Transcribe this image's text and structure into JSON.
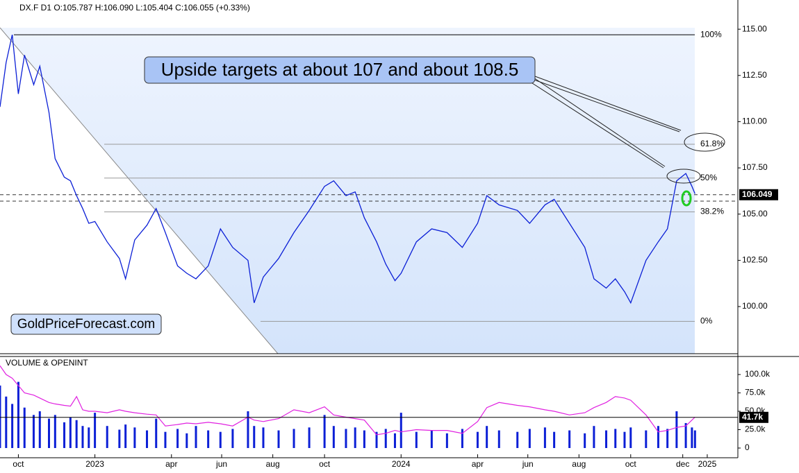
{
  "header": "DX.F  D1  O:105.787  H:106.090  L:105.404  C:106.055  (+0.33%)",
  "annotation": "Upside targets at about 107 and about 108.5",
  "watermark": "GoldPriceForecast.com",
  "chart_data": [
    {
      "type": "line",
      "color": "#0b1fd6",
      "x": [
        2022.69,
        2022.71,
        2022.73,
        2022.75,
        2022.77,
        2022.8,
        2022.82,
        2022.85,
        2022.87,
        2022.9,
        2022.92,
        2022.94,
        2022.96,
        2022.98,
        2023.0,
        2023.04,
        2023.08,
        2023.1,
        2023.13,
        2023.17,
        2023.2,
        2023.23,
        2023.27,
        2023.3,
        2023.33,
        2023.37,
        2023.41,
        2023.45,
        2023.5,
        2023.52,
        2023.55,
        2023.6,
        2023.65,
        2023.7,
        2023.75,
        2023.78,
        2023.82,
        2023.85,
        2023.88,
        2023.92,
        2023.95,
        2023.98,
        2024.0,
        2024.05,
        2024.1,
        2024.15,
        2024.2,
        2024.25,
        2024.28,
        2024.32,
        2024.38,
        2024.42,
        2024.47,
        2024.5,
        2024.55,
        2024.6,
        2024.63,
        2024.67,
        2024.7,
        2024.73,
        2024.75,
        2024.8,
        2024.84,
        2024.87,
        2024.9,
        2024.93,
        2024.95,
        2024.96
      ],
      "values": [
        110.8,
        113.2,
        114.7,
        111.5,
        113.6,
        112.0,
        113.0,
        110.5,
        108.0,
        107.0,
        106.8,
        106.0,
        105.3,
        104.5,
        104.6,
        103.5,
        102.6,
        101.5,
        103.6,
        104.4,
        105.3,
        104.0,
        102.2,
        101.8,
        101.5,
        102.2,
        104.2,
        103.2,
        102.5,
        100.2,
        101.6,
        102.6,
        104.0,
        105.2,
        106.5,
        106.8,
        106.0,
        106.2,
        104.8,
        103.5,
        102.3,
        101.4,
        101.8,
        103.5,
        104.2,
        104.0,
        103.2,
        104.5,
        106.0,
        105.5,
        105.2,
        104.5,
        105.5,
        105.8,
        104.5,
        103.2,
        101.5,
        101.0,
        101.5,
        100.8,
        100.2,
        102.5,
        103.5,
        104.2,
        106.8,
        107.2,
        106.5,
        106.1
      ],
      "xlim": [
        2022.69,
        2025.1
      ],
      "xticks": [
        {
          "value": 2022.75,
          "label": "oct"
        },
        {
          "value": 2023.0,
          "label": "2023"
        },
        {
          "value": 2023.25,
          "label": "apr"
        },
        {
          "value": 2023.414,
          "label": "jun"
        },
        {
          "value": 2023.581,
          "label": "aug"
        },
        {
          "value": 2023.75,
          "label": "oct"
        },
        {
          "value": 2024.0,
          "label": "2024"
        },
        {
          "value": 2024.25,
          "label": "apr"
        },
        {
          "value": 2024.414,
          "label": "jun"
        },
        {
          "value": 2024.581,
          "label": "aug"
        },
        {
          "value": 2024.75,
          "label": "oct"
        },
        {
          "value": 2024.92,
          "label": "dec"
        },
        {
          "value": 2025.0,
          "label": "2025"
        }
      ],
      "ylim": [
        97.45,
        116.58
      ],
      "yticks": [
        {
          "value": 100,
          "label": "100.00"
        },
        {
          "value": 102.5,
          "label": "102.50"
        },
        {
          "value": 105,
          "label": "105.00"
        },
        {
          "value": 107.5,
          "label": "107.50"
        },
        {
          "value": 110,
          "label": "110.00"
        },
        {
          "value": 112.5,
          "label": "112.50"
        },
        {
          "value": 115,
          "label": "115.00"
        }
      ],
      "fib_levels": [
        {
          "value": 114.7,
          "label": "100%"
        },
        {
          "value": 108.78,
          "label": "61.8%"
        },
        {
          "value": 106.95,
          "label": "50%"
        },
        {
          "value": 105.12,
          "label": "38.2%"
        },
        {
          "value": 99.2,
          "label": "0%"
        }
      ],
      "dashed_levels": [
        106.05,
        105.7
      ],
      "last_price": {
        "value": 106.049,
        "label": "106.049"
      }
    },
    {
      "type": "bar",
      "title": "VOLUME & OPENINT",
      "color": "#0b1fd6",
      "x": [
        2022.69,
        2022.71,
        2022.73,
        2022.75,
        2022.77,
        2022.8,
        2022.82,
        2022.85,
        2022.87,
        2022.9,
        2022.92,
        2022.94,
        2022.96,
        2022.98,
        2023.0,
        2023.04,
        2023.08,
        2023.1,
        2023.13,
        2023.17,
        2023.2,
        2023.23,
        2023.27,
        2023.3,
        2023.33,
        2023.37,
        2023.41,
        2023.45,
        2023.5,
        2023.52,
        2023.55,
        2023.6,
        2023.65,
        2023.7,
        2023.75,
        2023.78,
        2023.82,
        2023.85,
        2023.88,
        2023.92,
        2023.95,
        2023.98,
        2024.0,
        2024.05,
        2024.1,
        2024.15,
        2024.2,
        2024.25,
        2024.28,
        2024.32,
        2024.38,
        2024.42,
        2024.47,
        2024.5,
        2024.55,
        2024.6,
        2024.63,
        2024.67,
        2024.7,
        2024.73,
        2024.75,
        2024.8,
        2024.84,
        2024.87,
        2024.9,
        2024.93,
        2024.95,
        2024.96
      ],
      "values": [
        85000,
        70000,
        60000,
        90000,
        55000,
        45000,
        50000,
        40000,
        45000,
        35000,
        42000,
        38000,
        30000,
        28000,
        48000,
        30000,
        25000,
        32000,
        28000,
        24000,
        40000,
        22000,
        26000,
        20000,
        30000,
        24000,
        22000,
        26000,
        50000,
        30000,
        28000,
        24000,
        26000,
        28000,
        45000,
        30000,
        26000,
        28000,
        24000,
        22000,
        26000,
        20000,
        48000,
        22000,
        24000,
        20000,
        26000,
        22000,
        30000,
        24000,
        22000,
        26000,
        28000,
        22000,
        24000,
        20000,
        30000,
        24000,
        26000,
        22000,
        28000,
        24000,
        30000,
        26000,
        50000,
        34000,
        28000,
        24000
      ],
      "openint": {
        "color": "#e020e0",
        "values": [
          112000,
          100000,
          95000,
          85000,
          75000,
          72000,
          68000,
          62000,
          60000,
          58000,
          57000,
          70000,
          52000,
          50000,
          50000,
          48000,
          52000,
          50000,
          48000,
          46000,
          45000,
          30000,
          32000,
          34000,
          33000,
          35000,
          33000,
          30000,
          42000,
          38000,
          36000,
          40000,
          52000,
          48000,
          56000,
          45000,
          42000,
          40000,
          38000,
          18000,
          20000,
          24000,
          22000,
          25000,
          24000,
          24000,
          20000,
          36000,
          55000,
          62000,
          58000,
          56000,
          52000,
          50000,
          45000,
          48000,
          55000,
          62000,
          70000,
          68000,
          65000,
          45000,
          22000,
          24000,
          28000,
          30000,
          38000,
          42000
        ]
      },
      "xlim": [
        2022.69,
        2025.1
      ],
      "ylim": [
        -13200,
        126400
      ],
      "yticks": [
        {
          "value": 0,
          "label": "0"
        },
        {
          "value": 25000,
          "label": "25.0k"
        },
        {
          "value": 50000,
          "label": "50.0k"
        },
        {
          "value": 75000,
          "label": "75.0k"
        },
        {
          "value": 100000,
          "label": "100.0k"
        }
      ],
      "last_volume": {
        "value": 41700,
        "label": "41.7k"
      }
    }
  ]
}
